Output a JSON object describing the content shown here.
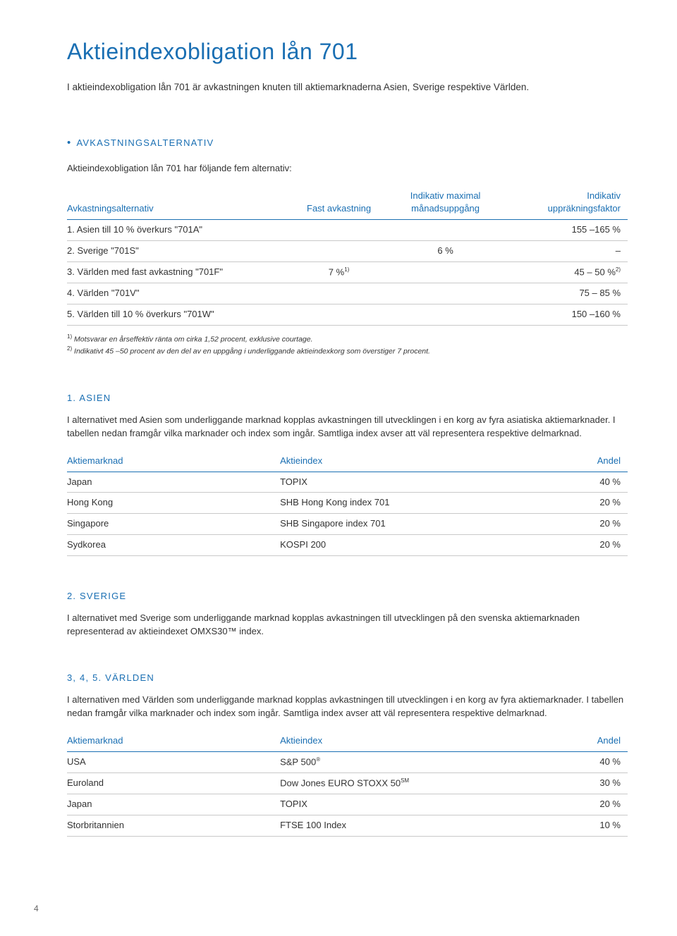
{
  "page_title": "Aktieindexobligation lån 701",
  "intro": "I aktieindexobligation lån 701 är avkastningen knuten till aktiemarknaderna Asien, Sverige respektive Världen.",
  "sec_avk": {
    "heading": "AVKASTNINGSALTERNATIV",
    "para": "Aktieindexobligation lån 701 har följande fem alternativ:",
    "headers": {
      "c1": "Avkastningsalternativ",
      "c2": "Fast avkastning",
      "c3_l1": "Indikativ maximal",
      "c3_l2": "månadsuppgång",
      "c4_l1": "Indikativ",
      "c4_l2": "uppräkningsfaktor"
    },
    "rows": [
      {
        "c1": "1. Asien till 10 % överkurs \"701A\"",
        "c2": "",
        "c3": "",
        "c4": "155 –165 %"
      },
      {
        "c1": "2. Sverige \"701S\"",
        "c2": "",
        "c3": "6 %",
        "c4": "–"
      },
      {
        "c1": "3. Världen med fast avkastning \"701F\"",
        "c2": "7 %",
        "c2_sup": "1)",
        "c3": "",
        "c4": "45 – 50 %",
        "c4_sup": "2)"
      },
      {
        "c1": "4. Världen \"701V\"",
        "c2": "",
        "c3": "",
        "c4": "75 – 85 %"
      },
      {
        "c1": "5. Världen till 10 % överkurs \"701W\"",
        "c2": "",
        "c3": "",
        "c4": "150 –160 %"
      }
    ],
    "fn1_sup": "1)",
    "fn1": " Motsvarar en årseffektiv ränta om cirka 1,52 procent, exklusive courtage.",
    "fn2_sup": "2)",
    "fn2": " Indikativt 45 –50 procent av den del av en uppgång i underliggande aktieindexkorg som överstiger 7 procent."
  },
  "sec_asien": {
    "heading": "1. ASIEN",
    "para": "I alternativet med Asien som underliggande marknad kopplas avkastningen till utvecklingen i en korg av fyra asiatiska aktiemarknader. I tabellen nedan framgår vilka marknader och index som ingår. Samtliga index avser att väl representera respektive delmarknad.",
    "headers": {
      "c1": "Aktiemarknad",
      "c2": "Aktieindex",
      "c3": "Andel"
    },
    "rows": [
      {
        "c1": "Japan",
        "c2": "TOPIX",
        "c3": "40 %"
      },
      {
        "c1": "Hong Kong",
        "c2": "SHB Hong Kong index 701",
        "c3": "20 %"
      },
      {
        "c1": "Singapore",
        "c2": "SHB Singapore index 701",
        "c3": "20 %"
      },
      {
        "c1": "Sydkorea",
        "c2": "KOSPI 200",
        "c3": "20 %"
      }
    ]
  },
  "sec_sverige": {
    "heading": "2. SVERIGE",
    "para": "I alternativet med Sverige som underliggande marknad kopplas avkastningen till utvecklingen på den svenska aktiemarknaden representerad av aktieindexet OMXS30™ index."
  },
  "sec_varlden": {
    "heading": "3, 4, 5. VÄRLDEN",
    "para": "I alternativen med Världen som underliggande marknad kopplas avkastningen till utvecklingen i en korg av fyra aktiemarknader. I tabellen nedan framgår vilka marknader och index som ingår. Samtliga index avser att väl representera respektive delmarknad.",
    "headers": {
      "c1": "Aktiemarknad",
      "c2": "Aktieindex",
      "c3": "Andel"
    },
    "rows": [
      {
        "c1": "USA",
        "c2": "S&P 500",
        "c2_sup": "®",
        "c3": "40 %"
      },
      {
        "c1": "Euroland",
        "c2": "Dow Jones EURO STOXX 50",
        "c2_sup": "SM",
        "c3": "30 %"
      },
      {
        "c1": "Japan",
        "c2": "TOPIX",
        "c3": "20 %"
      },
      {
        "c1": "Storbritannien",
        "c2": "FTSE 100 Index",
        "c3": "10 %"
      }
    ]
  },
  "page_num": "4"
}
